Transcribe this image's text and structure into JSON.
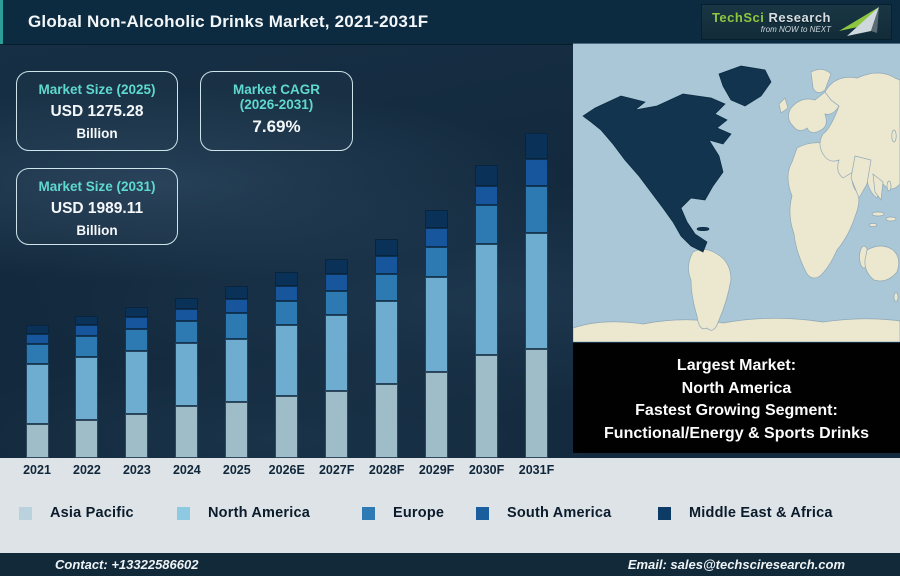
{
  "title": "Global Non-Alcoholic Drinks Market, 2021-2031F",
  "logo": {
    "brand_primary": "TechSci",
    "brand_secondary": "Research",
    "tagline": "from NOW to NEXT",
    "brand_primary_color": "#8dc63f",
    "brand_secondary_color": "#d7dfe3"
  },
  "info_boxes": {
    "box_2025": {
      "label": "Market Size (2025)",
      "value": "USD 1275.28",
      "unit": "Billion"
    },
    "box_cagr": {
      "label_line1": "Market CAGR",
      "label_line2": "(2026-2031)",
      "value": "7.69%"
    },
    "box_2031": {
      "label": "Market Size (2031)",
      "value": "USD 1989.11",
      "unit": "Billion"
    }
  },
  "chart_data": {
    "type": "bar",
    "stacked": true,
    "title": "Global Non-Alcoholic Drinks Market, 2021-2031F",
    "xlabel": "",
    "ylabel": "",
    "value_axis": "none shown (illustrative stacked heights, relative units)",
    "grid": false,
    "legend_position": "bottom",
    "categories": [
      "2021",
      "2022",
      "2023",
      "2024",
      "2025",
      "2026E",
      "2027F",
      "2028F",
      "2029F",
      "2030F",
      "2031F"
    ],
    "series": [
      {
        "name": "Asia Pacific",
        "color": "#9fbcc9",
        "legend_color": "#bad2de",
        "values": [
          34,
          38,
          44,
          52,
          56,
          62,
          67,
          74,
          86,
          103,
          109
        ]
      },
      {
        "name": "North America",
        "color": "#6fadd0",
        "legend_color": "#8ec9e2",
        "values": [
          60,
          63,
          63,
          63,
          63,
          71,
          76,
          83,
          95,
          111,
          116
        ]
      },
      {
        "name": "Europe",
        "color": "#2d7ab3",
        "legend_color": "#2e7ab5",
        "values": [
          20,
          21,
          22,
          22,
          26,
          24,
          24,
          27,
          30,
          39,
          47
        ]
      },
      {
        "name": "South America",
        "color": "#17569d",
        "legend_color": "#1b5e9e",
        "values": [
          10,
          11,
          12,
          12,
          14,
          15,
          17,
          18,
          19,
          19,
          27
        ]
      },
      {
        "name": "Middle East & Africa",
        "color": "#0a3157",
        "legend_color": "#0c3c66",
        "values": [
          9,
          9,
          10,
          11,
          13,
          14,
          15,
          17,
          18,
          21,
          26
        ]
      }
    ],
    "totals_anchor": {
      "2025": "USD 1275.28 Billion",
      "2031": "USD 1989.11 Billion",
      "cagr_2026_2031": "7.69%"
    }
  },
  "map": {
    "highlighted_region": "North America",
    "ocean_color": "#a9c7d7",
    "land_color": "#ece7cf",
    "highlight_color": "#12344e",
    "border_color": "#8fa8b6"
  },
  "highlight_box": {
    "lines": [
      "Largest Market:",
      "North America",
      "Fastest Growing Segment:",
      "Functional/Energy & Sports Drinks"
    ]
  },
  "footer": {
    "contact": "Contact: +13322586602",
    "email": "Email: sales@techsciresearch.com"
  }
}
